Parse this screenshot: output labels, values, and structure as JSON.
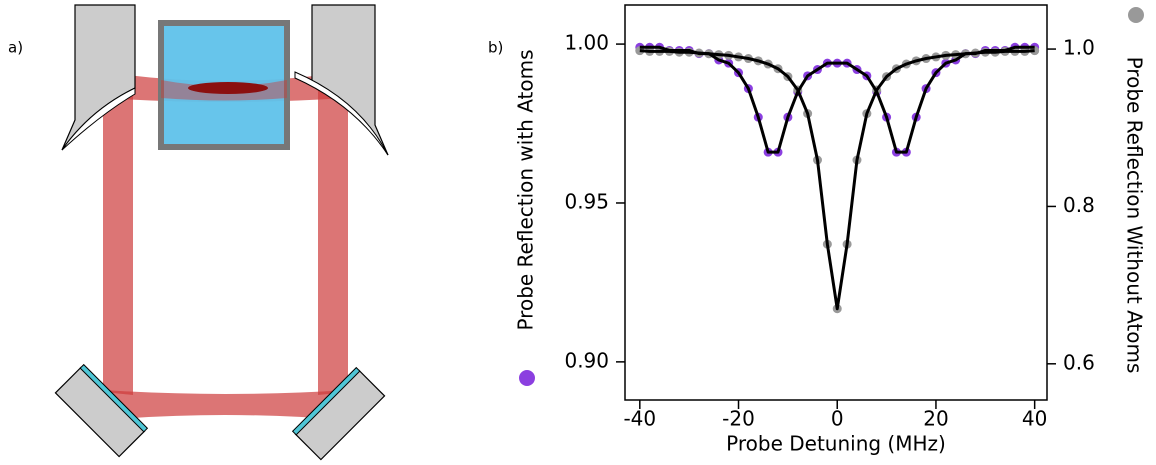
{
  "diagram": {
    "label": "a)"
  },
  "chart_data": {
    "type": "scatter",
    "panel_label": "b)",
    "x_label": "Probe Detuning (MHz)",
    "y_label": "Probe Reflection with Atoms",
    "y2_label": "Probe Reflection Without Atoms",
    "x": [
      -40,
      -38,
      -36,
      -34,
      -32,
      -30,
      -28,
      -26,
      -24,
      -22,
      -20,
      -18,
      -16,
      -14,
      -12,
      -10,
      -8,
      -6,
      -4,
      -2,
      0,
      2,
      4,
      6,
      8,
      10,
      12,
      14,
      16,
      18,
      20,
      22,
      24,
      26,
      28,
      30,
      32,
      34,
      36,
      38,
      40
    ],
    "xlim": [
      -43,
      42.5
    ],
    "xticks": [
      -40,
      -20,
      0,
      20,
      40
    ],
    "ylim": [
      0.888,
      1.0123
    ],
    "yticks": [
      {
        "value": 0.9,
        "label": "0.90"
      },
      0.95,
      {
        "value": 1,
        "label": "1.00"
      }
    ],
    "y2lim": [
      0.554,
      1.056
    ],
    "y2ticks": [
      0.6,
      0.8,
      {
        "value": 1,
        "label": "1.0"
      }
    ],
    "series": [
      {
        "type": "scatter",
        "color": "#8b3fe0",
        "values": [
          0.999,
          0.999,
          0.999,
          0.998,
          0.998,
          0.998,
          0.997,
          0.997,
          0.995,
          0.994,
          0.991,
          0.986,
          0.977,
          0.966,
          0.966,
          0.977,
          0.985,
          0.99,
          0.992,
          0.994,
          0.994,
          0.994,
          0.992,
          0.99,
          0.985,
          0.977,
          0.966,
          0.966,
          0.977,
          0.986,
          0.991,
          0.994,
          0.995,
          0.997,
          0.997,
          0.998,
          0.998,
          0.998,
          0.999,
          0.999,
          0.999
        ]
      },
      {
        "type": "scatter",
        "color": "#999999",
        "axis": "y2",
        "values": [
          0.998,
          0.997,
          0.997,
          0.997,
          0.996,
          0.996,
          0.995,
          0.994,
          0.993,
          0.992,
          0.99,
          0.988,
          0.985,
          0.981,
          0.975,
          0.965,
          0.948,
          0.918,
          0.859,
          0.752,
          0.67,
          0.752,
          0.859,
          0.918,
          0.948,
          0.965,
          0.975,
          0.981,
          0.985,
          0.988,
          0.99,
          0.992,
          0.993,
          0.994,
          0.995,
          0.996,
          0.996,
          0.997,
          0.997,
          0.997,
          0.998
        ]
      },
      {
        "type": "line",
        "color": "#000000",
        "values": [
          0.999,
          0.999,
          0.999,
          0.998,
          0.998,
          0.998,
          0.997,
          0.997,
          0.995,
          0.994,
          0.991,
          0.986,
          0.977,
          0.966,
          0.966,
          0.977,
          0.985,
          0.99,
          0.992,
          0.994,
          0.994,
          0.994,
          0.992,
          0.99,
          0.985,
          0.977,
          0.966,
          0.966,
          0.977,
          0.986,
          0.991,
          0.994,
          0.995,
          0.997,
          0.997,
          0.998,
          0.998,
          0.998,
          0.999,
          0.999,
          0.999
        ]
      },
      {
        "type": "line",
        "color": "#000000",
        "axis": "y2",
        "values": [
          0.998,
          0.997,
          0.997,
          0.997,
          0.996,
          0.996,
          0.995,
          0.994,
          0.993,
          0.992,
          0.99,
          0.988,
          0.985,
          0.981,
          0.975,
          0.965,
          0.948,
          0.918,
          0.859,
          0.752,
          0.67,
          0.752,
          0.859,
          0.918,
          0.948,
          0.965,
          0.975,
          0.981,
          0.985,
          0.988,
          0.99,
          0.992,
          0.993,
          0.994,
          0.995,
          0.996,
          0.996,
          0.997,
          0.997,
          0.997,
          0.998
        ]
      }
    ]
  }
}
